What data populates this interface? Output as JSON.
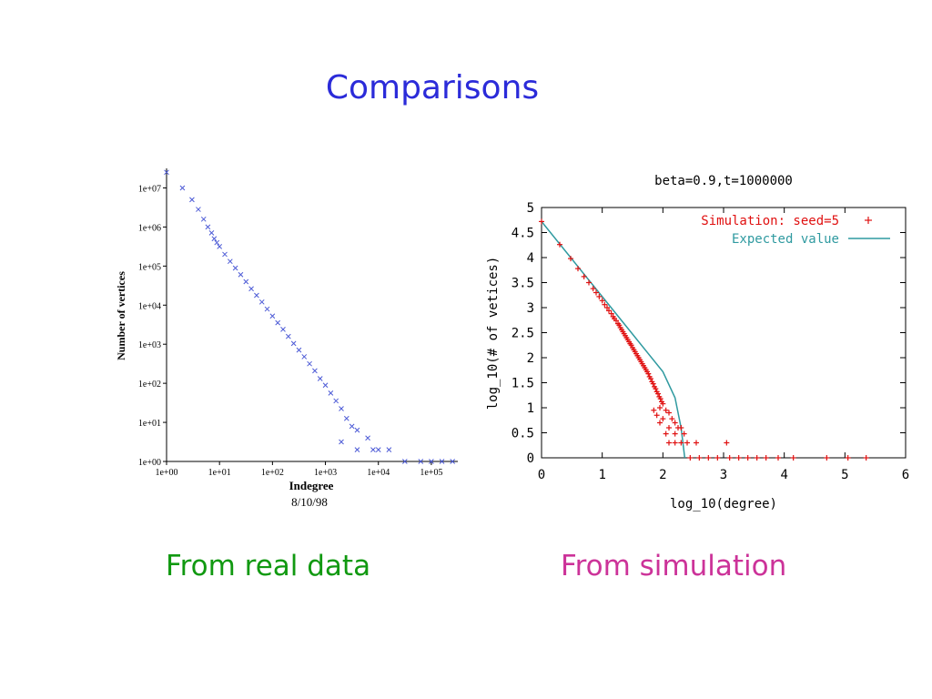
{
  "slide": {
    "title": "Comparisons",
    "caption_left": "From real data",
    "caption_right": "From simulation"
  },
  "colors": {
    "title": "#2b2bd9",
    "caption_left": "#119911",
    "caption_right": "#cc3399",
    "real_marker": "#4d5bd6",
    "sim_marker": "#e01010",
    "expected_line": "#2f9aa0"
  },
  "chart_data": [
    {
      "type": "scatter",
      "title": "",
      "xlabel": "Indegree",
      "ylabel": "Number of vertices",
      "annotation": "8/10/98",
      "log_x": true,
      "log_y": true,
      "xlim_log10": [
        0,
        5.5
      ],
      "ylim_log10": [
        0,
        7.5
      ],
      "x_ticks": [
        "1e+00",
        "1e+01",
        "1e+02",
        "1e+03",
        "1e+04",
        "1e+05"
      ],
      "y_ticks": [
        "1e+00",
        "1e+01",
        "1e+02",
        "1e+03",
        "1e+04",
        "1e+05",
        "1e+06",
        "1e+07"
      ],
      "grid": false,
      "marker": "x",
      "series": [
        {
          "points_log10": [
            [
              0.0,
              7.4
            ],
            [
              0.3,
              7.0
            ],
            [
              0.48,
              6.7
            ],
            [
              0.6,
              6.45
            ],
            [
              0.7,
              6.2
            ],
            [
              0.78,
              6.0
            ],
            [
              0.85,
              5.85
            ],
            [
              0.9,
              5.7
            ],
            [
              0.95,
              5.6
            ],
            [
              1.0,
              5.5
            ],
            [
              1.1,
              5.3
            ],
            [
              1.2,
              5.12
            ],
            [
              1.3,
              4.95
            ],
            [
              1.4,
              4.78
            ],
            [
              1.5,
              4.6
            ],
            [
              1.6,
              4.42
            ],
            [
              1.7,
              4.25
            ],
            [
              1.8,
              4.08
            ],
            [
              1.9,
              3.9
            ],
            [
              2.0,
              3.72
            ],
            [
              2.1,
              3.55
            ],
            [
              2.2,
              3.38
            ],
            [
              2.3,
              3.2
            ],
            [
              2.4,
              3.02
            ],
            [
              2.5,
              2.85
            ],
            [
              2.6,
              2.68
            ],
            [
              2.7,
              2.5
            ],
            [
              2.8,
              2.32
            ],
            [
              2.9,
              2.12
            ],
            [
              3.0,
              1.95
            ],
            [
              3.1,
              1.75
            ],
            [
              3.2,
              1.55
            ],
            [
              3.3,
              1.35
            ],
            [
              3.4,
              1.1
            ],
            [
              3.5,
              0.9
            ],
            [
              3.6,
              0.8
            ],
            [
              3.8,
              0.6
            ],
            [
              4.0,
              0.3
            ],
            [
              4.2,
              0.3
            ],
            [
              3.3,
              0.5
            ],
            [
              3.6,
              0.3
            ],
            [
              3.9,
              0.3
            ],
            [
              4.5,
              0.0
            ],
            [
              4.8,
              0.0
            ],
            [
              5.0,
              0.0
            ],
            [
              5.2,
              0.0
            ],
            [
              5.4,
              0.0
            ]
          ]
        }
      ]
    },
    {
      "type": "scatter",
      "title": "beta=0.9,t=1000000",
      "xlabel": "log_10(degree)",
      "ylabel": "log_10(# of vetices)",
      "xlim": [
        0,
        6
      ],
      "ylim": [
        0,
        5
      ],
      "x_ticks": [
        "0",
        "1",
        "2",
        "3",
        "4",
        "5",
        "6"
      ],
      "y_ticks": [
        "0",
        "0.5",
        "1",
        "1.5",
        "2",
        "2.5",
        "3",
        "3.5",
        "4",
        "4.5",
        "5"
      ],
      "grid": false,
      "legend_position": "top-right",
      "series": [
        {
          "name": "Simulation: seed=5",
          "marker": "+",
          "points": [
            [
              0.0,
              4.72
            ],
            [
              0.3,
              4.26
            ],
            [
              0.48,
              3.98
            ],
            [
              0.6,
              3.78
            ],
            [
              0.7,
              3.62
            ],
            [
              0.78,
              3.5
            ],
            [
              0.85,
              3.38
            ],
            [
              0.9,
              3.3
            ],
            [
              0.95,
              3.22
            ],
            [
              1.0,
              3.14
            ],
            [
              1.04,
              3.06
            ],
            [
              1.08,
              3.0
            ],
            [
              1.11,
              2.94
            ],
            [
              1.15,
              2.88
            ],
            [
              1.18,
              2.82
            ],
            [
              1.2,
              2.78
            ],
            [
              1.23,
              2.74
            ],
            [
              1.26,
              2.68
            ],
            [
              1.28,
              2.65
            ],
            [
              1.3,
              2.6
            ],
            [
              1.32,
              2.56
            ],
            [
              1.34,
              2.52
            ],
            [
              1.36,
              2.48
            ],
            [
              1.38,
              2.44
            ],
            [
              1.4,
              2.4
            ],
            [
              1.42,
              2.36
            ],
            [
              1.44,
              2.32
            ],
            [
              1.46,
              2.28
            ],
            [
              1.48,
              2.25
            ],
            [
              1.5,
              2.2
            ],
            [
              1.52,
              2.16
            ],
            [
              1.54,
              2.12
            ],
            [
              1.56,
              2.08
            ],
            [
              1.58,
              2.04
            ],
            [
              1.6,
              2.0
            ],
            [
              1.62,
              1.96
            ],
            [
              1.64,
              1.92
            ],
            [
              1.66,
              1.88
            ],
            [
              1.68,
              1.84
            ],
            [
              1.7,
              1.8
            ],
            [
              1.72,
              1.76
            ],
            [
              1.74,
              1.72
            ],
            [
              1.76,
              1.68
            ],
            [
              1.78,
              1.62
            ],
            [
              1.8,
              1.58
            ],
            [
              1.82,
              1.52
            ],
            [
              1.84,
              1.48
            ],
            [
              1.86,
              1.42
            ],
            [
              1.88,
              1.38
            ],
            [
              1.9,
              1.32
            ],
            [
              1.92,
              1.28
            ],
            [
              1.94,
              1.22
            ],
            [
              1.96,
              1.18
            ],
            [
              1.98,
              1.12
            ],
            [
              2.0,
              1.08
            ],
            [
              1.85,
              0.95
            ],
            [
              1.9,
              0.85
            ],
            [
              1.95,
              1.0
            ],
            [
              2.05,
              0.95
            ],
            [
              2.1,
              0.9
            ],
            [
              2.15,
              0.78
            ],
            [
              2.2,
              0.7
            ],
            [
              2.25,
              0.6
            ],
            [
              2.3,
              0.6
            ],
            [
              2.0,
              0.78
            ],
            [
              2.1,
              0.6
            ],
            [
              1.95,
              0.7
            ],
            [
              2.05,
              0.48
            ],
            [
              2.2,
              0.48
            ],
            [
              2.35,
              0.48
            ],
            [
              2.1,
              0.3
            ],
            [
              2.2,
              0.3
            ],
            [
              2.3,
              0.3
            ],
            [
              2.4,
              0.3
            ],
            [
              2.55,
              0.3
            ],
            [
              3.05,
              0.3
            ],
            [
              2.45,
              0.0
            ],
            [
              2.6,
              0.0
            ],
            [
              2.75,
              0.0
            ],
            [
              2.9,
              0.0
            ],
            [
              3.1,
              0.0
            ],
            [
              3.25,
              0.0
            ],
            [
              3.4,
              0.0
            ],
            [
              3.55,
              0.0
            ],
            [
              3.7,
              0.0
            ],
            [
              3.9,
              0.0
            ],
            [
              4.15,
              0.0
            ],
            [
              4.7,
              0.0
            ],
            [
              5.05,
              0.0
            ],
            [
              5.35,
              0.0
            ]
          ]
        },
        {
          "name": "Expected value",
          "marker": "line",
          "points": [
            [
              0.0,
              4.72
            ],
            [
              0.5,
              3.97
            ],
            [
              1.0,
              3.22
            ],
            [
              1.5,
              2.47
            ],
            [
              2.0,
              1.72
            ],
            [
              2.2,
              1.2
            ],
            [
              2.3,
              0.6
            ],
            [
              2.36,
              0.0
            ]
          ]
        }
      ]
    }
  ]
}
